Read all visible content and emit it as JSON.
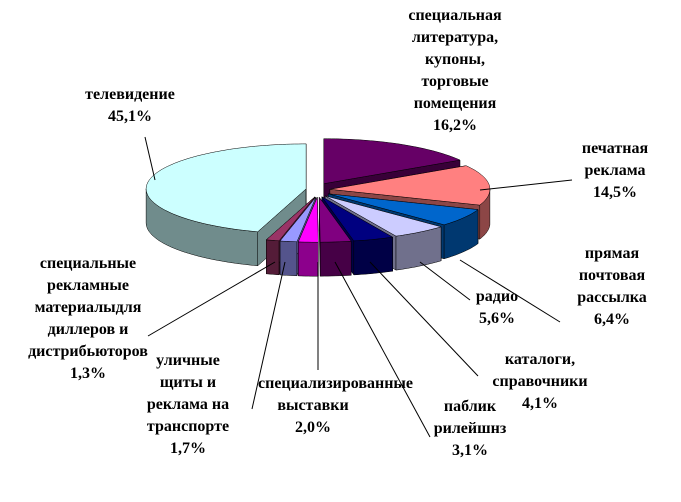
{
  "chart_data": {
    "type": "pie3d",
    "categories": [
      "специальная литература, купоны, торговые помещения",
      "печатная реклама",
      "прямая почтовая рассылка",
      "радио",
      "каталоги, справочники",
      "паблик рилейшнз",
      "специализированные выставки",
      "уличные щиты и реклама на транспорте",
      "специальные рекламные материалыдля диллеров и дистрибьюторов",
      "телевидение"
    ],
    "values": [
      16.2,
      14.5,
      6.4,
      5.6,
      4.1,
      3.1,
      2.0,
      1.7,
      1.3,
      45.1
    ],
    "value_labels": [
      "16,2%",
      "14,5%",
      "6,4%",
      "5,6%",
      "4,1%",
      "3,1%",
      "2,0%",
      "1,7%",
      "1,3%",
      "45,1%"
    ],
    "colors": [
      "#660066",
      "#ff8080",
      "#0066cc",
      "#ccccff",
      "#000080",
      "#800080",
      "#ff00ff",
      "#9999ff",
      "#993366",
      "#ccffff"
    ]
  }
}
